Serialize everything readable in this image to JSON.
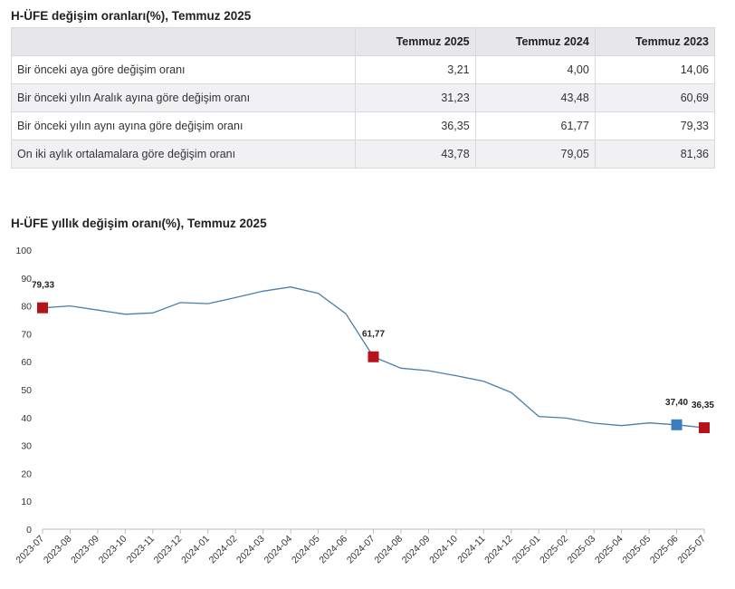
{
  "table": {
    "title": "H-ÜFE değişim oranları(%), Temmuz 2025",
    "columns": [
      "",
      "Temmuz 2025",
      "Temmuz 2024",
      "Temmuz 2023"
    ],
    "rows": [
      {
        "label": "Bir önceki aya göre değişim oranı",
        "values": [
          "3,21",
          "4,00",
          "14,06"
        ]
      },
      {
        "label": "Bir önceki yılın Aralık ayına göre değişim oranı",
        "values": [
          "31,23",
          "43,48",
          "60,69"
        ]
      },
      {
        "label": "Bir önceki yılın aynı ayına göre değişim oranı",
        "values": [
          "36,35",
          "61,77",
          "79,33"
        ]
      },
      {
        "label": "On iki aylık ortalamalara göre değişim oranı",
        "values": [
          "43,78",
          "79,05",
          "81,36"
        ]
      }
    ]
  },
  "chart_data": {
    "type": "line",
    "title": "H-ÜFE yıllık değişim oranı(%), Temmuz 2025",
    "xlabel": "",
    "ylabel": "",
    "ylim": [
      0,
      100
    ],
    "yticks": [
      0,
      10,
      20,
      30,
      40,
      50,
      60,
      70,
      80,
      90,
      100
    ],
    "grid": false,
    "x": [
      "2023-07",
      "2023-08",
      "2023-09",
      "2023-10",
      "2023-11",
      "2023-12",
      "2024-01",
      "2024-02",
      "2024-03",
      "2024-04",
      "2024-05",
      "2024-06",
      "2024-07",
      "2024-08",
      "2024-09",
      "2024-10",
      "2024-11",
      "2024-12",
      "2025-01",
      "2025-02",
      "2025-03",
      "2025-04",
      "2025-05",
      "2025-06",
      "2025-07"
    ],
    "series": [
      {
        "values": [
          79.33,
          80.0,
          78.5,
          77.0,
          77.5,
          81.2,
          80.8,
          83.0,
          85.3,
          86.8,
          84.5,
          77.2,
          61.77,
          57.7,
          56.8,
          55.0,
          53.0,
          49.0,
          40.4,
          39.8,
          38.0,
          37.1,
          38.1,
          37.4,
          36.35
        ],
        "color": "#4a7fab"
      }
    ],
    "annotations": [
      {
        "x": "2023-07",
        "label": "79,33",
        "color": "#b5121b"
      },
      {
        "x": "2024-07",
        "label": "61,77",
        "color": "#b5121b"
      },
      {
        "x": "2025-06",
        "label": "37,40",
        "color": "#3a7ebf"
      },
      {
        "x": "2025-07",
        "label": "36,35",
        "color": "#b5121b"
      }
    ]
  }
}
